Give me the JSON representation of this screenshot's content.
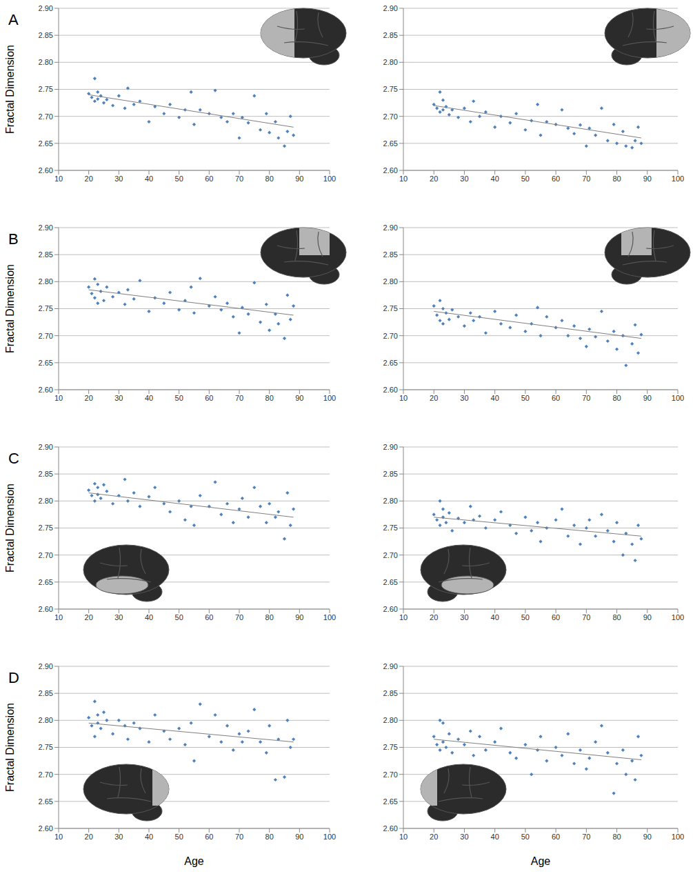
{
  "chart_data": [
    {
      "type": "scatter",
      "panel_label": "A",
      "ylabel": "Fractal Dimension",
      "color": "#4f81bd",
      "marker": "diamond",
      "grid": true,
      "xlim": [
        10,
        100
      ],
      "xticks": [
        10,
        20,
        30,
        40,
        50,
        60,
        70,
        80,
        90,
        100
      ],
      "ylim": [
        2.6,
        2.9
      ],
      "yticks": [
        {
          "value": 2.6,
          "label": "2.60"
        },
        2.65,
        {
          "value": 2.7,
          "label": "2.70"
        },
        2.75,
        {
          "value": 2.8,
          "label": "2.80"
        },
        2.85,
        {
          "value": 2.9,
          "label": "2.90"
        }
      ],
      "x": [
        20,
        21,
        22,
        22,
        23,
        23,
        24,
        25,
        26,
        28,
        30,
        32,
        33,
        35,
        37,
        40,
        42,
        45,
        47,
        50,
        52,
        54,
        55,
        57,
        60,
        62,
        64,
        66,
        68,
        70,
        71,
        73,
        75,
        77,
        79,
        80,
        82,
        83,
        85,
        86,
        87,
        88
      ],
      "y": [
        2.742,
        2.735,
        2.77,
        2.728,
        2.745,
        2.732,
        2.738,
        2.725,
        2.731,
        2.72,
        2.738,
        2.715,
        2.752,
        2.722,
        2.728,
        2.69,
        2.718,
        2.705,
        2.722,
        2.698,
        2.712,
        2.745,
        2.685,
        2.712,
        2.705,
        2.748,
        2.698,
        2.69,
        2.705,
        2.66,
        2.698,
        2.688,
        2.738,
        2.675,
        2.705,
        2.67,
        2.69,
        2.66,
        2.645,
        2.672,
        2.7,
        2.665
      ],
      "trend": {
        "x": [
          20,
          88
        ],
        "y": [
          2.74,
          2.68
        ],
        "color": "#7f7f7f",
        "line_style": "solid"
      }
    },
    {
      "type": "scatter",
      "color": "#4f81bd",
      "marker": "diamond",
      "grid": true,
      "xlim": [
        10,
        100
      ],
      "xticks": [
        10,
        20,
        30,
        40,
        50,
        60,
        70,
        80,
        90,
        100
      ],
      "ylim": [
        2.6,
        2.9
      ],
      "yticks": [
        {
          "value": 2.6,
          "label": "2.60"
        },
        2.65,
        {
          "value": 2.7,
          "label": "2.70"
        },
        2.75,
        {
          "value": 2.8,
          "label": "2.80"
        },
        2.85,
        {
          "value": 2.9,
          "label": "2.90"
        }
      ],
      "x": [
        20,
        21,
        22,
        22,
        23,
        23,
        24,
        25,
        26,
        28,
        30,
        32,
        33,
        35,
        37,
        40,
        42,
        45,
        47,
        50,
        52,
        54,
        55,
        57,
        60,
        62,
        64,
        66,
        68,
        70,
        71,
        73,
        75,
        77,
        79,
        80,
        82,
        83,
        85,
        86,
        87,
        88
      ],
      "y": [
        2.722,
        2.715,
        2.745,
        2.708,
        2.73,
        2.712,
        2.718,
        2.703,
        2.712,
        2.698,
        2.715,
        2.69,
        2.728,
        2.7,
        2.708,
        2.68,
        2.7,
        2.688,
        2.705,
        2.675,
        2.692,
        2.722,
        2.665,
        2.69,
        2.685,
        2.712,
        2.678,
        2.668,
        2.684,
        2.645,
        2.678,
        2.665,
        2.715,
        2.655,
        2.685,
        2.65,
        2.672,
        2.645,
        2.642,
        2.655,
        2.68,
        2.65
      ],
      "trend": {
        "x": [
          20,
          88
        ],
        "y": [
          2.72,
          2.66
        ],
        "color": "#7f7f7f",
        "line_style": "solid"
      }
    },
    {
      "type": "scatter",
      "panel_label": "B",
      "ylabel": "Fractal Dimension",
      "color": "#4f81bd",
      "marker": "diamond",
      "grid": true,
      "xlim": [
        10,
        100
      ],
      "xticks": [
        10,
        20,
        30,
        40,
        50,
        60,
        70,
        80,
        90,
        100
      ],
      "ylim": [
        2.6,
        2.9
      ],
      "yticks": [
        {
          "value": 2.6,
          "label": "2.60"
        },
        2.65,
        {
          "value": 2.7,
          "label": "2.70"
        },
        2.75,
        {
          "value": 2.8,
          "label": "2.80"
        },
        2.85,
        {
          "value": 2.9,
          "label": "2.90"
        }
      ],
      "x": [
        20,
        21,
        22,
        22,
        23,
        23,
        24,
        25,
        26,
        28,
        30,
        32,
        33,
        35,
        37,
        40,
        42,
        45,
        47,
        50,
        52,
        54,
        55,
        57,
        60,
        62,
        64,
        66,
        68,
        70,
        71,
        73,
        75,
        77,
        79,
        80,
        82,
        83,
        85,
        86,
        87,
        88
      ],
      "y": [
        2.79,
        2.778,
        2.805,
        2.77,
        2.795,
        2.76,
        2.782,
        2.765,
        2.79,
        2.772,
        2.78,
        2.758,
        2.785,
        2.768,
        2.802,
        2.745,
        2.77,
        2.76,
        2.78,
        2.748,
        2.765,
        2.79,
        2.742,
        2.806,
        2.755,
        2.772,
        2.748,
        2.76,
        2.735,
        2.705,
        2.752,
        2.74,
        2.798,
        2.725,
        2.758,
        2.71,
        2.74,
        2.722,
        2.695,
        2.775,
        2.73,
        2.755
      ],
      "trend": {
        "x": [
          20,
          88
        ],
        "y": [
          2.785,
          2.738
        ],
        "color": "#7f7f7f",
        "line_style": "solid"
      }
    },
    {
      "type": "scatter",
      "color": "#4f81bd",
      "marker": "diamond",
      "grid": true,
      "xlim": [
        10,
        100
      ],
      "xticks": [
        10,
        20,
        30,
        40,
        50,
        60,
        70,
        80,
        90,
        100
      ],
      "ylim": [
        2.6,
        2.9
      ],
      "yticks": [
        {
          "value": 2.6,
          "label": "2.60"
        },
        2.65,
        {
          "value": 2.7,
          "label": "2.70"
        },
        2.75,
        {
          "value": 2.8,
          "label": "2.80"
        },
        2.85,
        {
          "value": 2.9,
          "label": "2.90"
        }
      ],
      "x": [
        20,
        21,
        22,
        22,
        23,
        23,
        24,
        25,
        26,
        28,
        30,
        32,
        33,
        35,
        37,
        40,
        42,
        45,
        47,
        50,
        52,
        54,
        55,
        57,
        60,
        62,
        64,
        66,
        68,
        70,
        71,
        73,
        75,
        77,
        79,
        80,
        82,
        83,
        85,
        86,
        87,
        88
      ],
      "y": [
        2.755,
        2.738,
        2.765,
        2.728,
        2.75,
        2.722,
        2.742,
        2.73,
        2.748,
        2.735,
        2.718,
        2.742,
        2.728,
        2.735,
        2.705,
        2.745,
        2.722,
        2.715,
        2.738,
        2.708,
        2.722,
        2.752,
        2.7,
        2.735,
        2.715,
        2.728,
        2.7,
        2.718,
        2.695,
        2.68,
        2.712,
        2.698,
        2.745,
        2.69,
        2.708,
        2.675,
        2.7,
        2.645,
        2.685,
        2.72,
        2.668,
        2.702
      ],
      "trend": {
        "x": [
          20,
          88
        ],
        "y": [
          2.745,
          2.695
        ],
        "color": "#7f7f7f",
        "line_style": "solid"
      }
    },
    {
      "type": "scatter",
      "panel_label": "C",
      "ylabel": "Fractal Dimension",
      "color": "#4f81bd",
      "marker": "diamond",
      "grid": true,
      "xlim": [
        10,
        100
      ],
      "xticks": [
        10,
        20,
        30,
        40,
        50,
        60,
        70,
        80,
        90,
        100
      ],
      "ylim": [
        2.6,
        2.9
      ],
      "yticks": [
        {
          "value": 2.6,
          "label": "2.60"
        },
        2.65,
        {
          "value": 2.7,
          "label": "2.70"
        },
        2.75,
        {
          "value": 2.8,
          "label": "2.80"
        },
        2.85,
        {
          "value": 2.9,
          "label": "2.90"
        }
      ],
      "x": [
        20,
        21,
        22,
        22,
        23,
        23,
        24,
        25,
        26,
        28,
        30,
        32,
        33,
        35,
        37,
        40,
        42,
        45,
        47,
        50,
        52,
        54,
        55,
        57,
        60,
        62,
        64,
        66,
        68,
        70,
        71,
        73,
        75,
        77,
        79,
        80,
        82,
        83,
        85,
        86,
        87,
        88
      ],
      "y": [
        2.82,
        2.81,
        2.832,
        2.8,
        2.825,
        2.812,
        2.805,
        2.83,
        2.818,
        2.795,
        2.81,
        2.84,
        2.8,
        2.815,
        2.79,
        2.808,
        2.825,
        2.795,
        2.78,
        2.8,
        2.765,
        2.79,
        2.755,
        2.81,
        2.79,
        2.835,
        2.775,
        2.795,
        2.76,
        2.785,
        2.805,
        2.77,
        2.825,
        2.79,
        2.76,
        2.795,
        2.77,
        2.78,
        2.73,
        2.815,
        2.755,
        2.785
      ],
      "trend": {
        "x": [
          20,
          88
        ],
        "y": [
          2.815,
          2.77
        ],
        "color": "#7f7f7f",
        "line_style": "solid"
      }
    },
    {
      "type": "scatter",
      "color": "#4f81bd",
      "marker": "diamond",
      "grid": true,
      "xlim": [
        10,
        100
      ],
      "xticks": [
        10,
        20,
        30,
        40,
        50,
        60,
        70,
        80,
        90,
        100
      ],
      "ylim": [
        2.6,
        2.9
      ],
      "yticks": [
        {
          "value": 2.6,
          "label": "2.60"
        },
        2.65,
        {
          "value": 2.7,
          "label": "2.70"
        },
        2.75,
        {
          "value": 2.8,
          "label": "2.80"
        },
        2.85,
        {
          "value": 2.9,
          "label": "2.90"
        }
      ],
      "x": [
        20,
        21,
        22,
        22,
        23,
        23,
        24,
        25,
        26,
        28,
        30,
        32,
        33,
        35,
        37,
        40,
        42,
        45,
        47,
        50,
        52,
        54,
        55,
        57,
        60,
        62,
        64,
        66,
        68,
        70,
        71,
        73,
        75,
        77,
        79,
        80,
        82,
        83,
        85,
        86,
        87,
        88
      ],
      "y": [
        2.775,
        2.765,
        2.8,
        2.755,
        2.785,
        2.77,
        2.76,
        2.778,
        2.745,
        2.768,
        2.76,
        2.79,
        2.765,
        2.772,
        2.75,
        2.765,
        2.78,
        2.755,
        2.74,
        2.77,
        2.745,
        2.76,
        2.725,
        2.75,
        2.765,
        2.785,
        2.735,
        2.755,
        2.72,
        2.75,
        2.765,
        2.735,
        2.775,
        2.745,
        2.725,
        2.76,
        2.7,
        2.74,
        2.72,
        2.69,
        2.755,
        2.73
      ],
      "trend": {
        "x": [
          20,
          88
        ],
        "y": [
          2.77,
          2.735
        ],
        "color": "#7f7f7f",
        "line_style": "solid"
      }
    },
    {
      "type": "scatter",
      "panel_label": "D",
      "ylabel": "Fractal Dimension",
      "xlabel": "Age",
      "color": "#4f81bd",
      "marker": "diamond",
      "grid": true,
      "xlim": [
        10,
        100
      ],
      "xticks": [
        10,
        20,
        30,
        40,
        50,
        60,
        70,
        80,
        90,
        100
      ],
      "ylim": [
        2.6,
        2.9
      ],
      "yticks": [
        {
          "value": 2.6,
          "label": "2.60"
        },
        2.65,
        {
          "value": 2.7,
          "label": "2.70"
        },
        2.75,
        {
          "value": 2.8,
          "label": "2.80"
        },
        2.85,
        {
          "value": 2.9,
          "label": "2.90"
        }
      ],
      "x": [
        20,
        21,
        22,
        22,
        23,
        23,
        24,
        25,
        26,
        28,
        30,
        32,
        33,
        35,
        37,
        40,
        42,
        45,
        47,
        50,
        52,
        54,
        55,
        57,
        60,
        62,
        64,
        66,
        68,
        70,
        71,
        73,
        75,
        77,
        79,
        80,
        82,
        83,
        85,
        86,
        87,
        88
      ],
      "y": [
        2.805,
        2.79,
        2.835,
        2.77,
        2.81,
        2.795,
        2.785,
        2.815,
        2.8,
        2.775,
        2.8,
        2.79,
        2.765,
        2.795,
        2.785,
        2.76,
        2.81,
        2.78,
        2.765,
        2.785,
        2.755,
        2.795,
        2.725,
        2.83,
        2.77,
        2.81,
        2.76,
        2.79,
        2.745,
        2.775,
        2.76,
        2.78,
        2.82,
        2.76,
        2.74,
        2.79,
        2.69,
        2.765,
        2.695,
        2.8,
        2.75,
        2.765
      ],
      "trend": {
        "x": [
          20,
          88
        ],
        "y": [
          2.795,
          2.76
        ],
        "color": "#7f7f7f",
        "line_style": "solid"
      }
    },
    {
      "type": "scatter",
      "xlabel": "Age",
      "color": "#4f81bd",
      "marker": "diamond",
      "grid": true,
      "xlim": [
        10,
        100
      ],
      "xticks": [
        10,
        20,
        30,
        40,
        50,
        60,
        70,
        80,
        90,
        100
      ],
      "ylim": [
        2.6,
        2.9
      ],
      "yticks": [
        {
          "value": 2.6,
          "label": "2.60"
        },
        2.65,
        {
          "value": 2.7,
          "label": "2.70"
        },
        2.75,
        {
          "value": 2.8,
          "label": "2.80"
        },
        2.85,
        {
          "value": 2.9,
          "label": "2.90"
        }
      ],
      "x": [
        20,
        21,
        22,
        22,
        23,
        23,
        24,
        25,
        26,
        28,
        30,
        32,
        33,
        35,
        37,
        40,
        42,
        45,
        47,
        50,
        52,
        54,
        55,
        57,
        60,
        62,
        64,
        66,
        68,
        70,
        71,
        73,
        75,
        77,
        79,
        80,
        82,
        83,
        85,
        86,
        87,
        88
      ],
      "y": [
        2.77,
        2.755,
        2.8,
        2.745,
        2.795,
        2.76,
        2.75,
        2.775,
        2.74,
        2.765,
        2.755,
        2.78,
        2.735,
        2.77,
        2.745,
        2.76,
        2.785,
        2.74,
        2.73,
        2.755,
        2.7,
        2.745,
        2.77,
        2.725,
        2.75,
        2.735,
        2.775,
        2.72,
        2.745,
        2.71,
        2.73,
        2.76,
        2.79,
        2.74,
        2.665,
        2.72,
        2.745,
        2.7,
        2.725,
        2.69,
        2.77,
        2.735
      ],
      "trend": {
        "x": [
          20,
          88
        ],
        "y": [
          2.765,
          2.727
        ],
        "color": "#7f7f7f",
        "line_style": "solid"
      }
    }
  ]
}
